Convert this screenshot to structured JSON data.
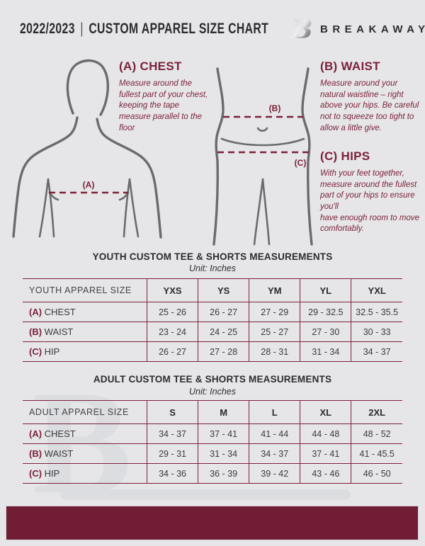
{
  "header": {
    "season": "2022/2023",
    "divider": "|",
    "title": "CUSTOM APPAREL SIZE CHART",
    "brand": "BREAKAWAY"
  },
  "watermark": {
    "letter": "B"
  },
  "figure_labels": {
    "chest": "(A)",
    "waist": "(B)",
    "hips": "(C)"
  },
  "instructions": [
    {
      "id": "A",
      "heading": "(A) CHEST",
      "body": "Measure around the fullest part of your chest, keeping the tape measure parallel to the floor"
    },
    {
      "id": "B",
      "heading": "(B) WAIST",
      "body": "Measure around your natural waistline – right above your hips. Be careful not to squeeze too tight to allow a little give."
    },
    {
      "id": "C",
      "heading": "(C) HIPS",
      "body": "With your feet together, measure around the fullest part of your hips to ensure you'll\nhave enough room to move comfortably."
    }
  ],
  "chart_data": [
    {
      "type": "table",
      "title": "YOUTH CUSTOM TEE & SHORTS MEASUREMENTS",
      "unit": "Unit: Inches",
      "header": [
        "YOUTH APPAREL SIZE",
        "YXS",
        "YS",
        "YM",
        "YL",
        "YXL"
      ],
      "rows": [
        {
          "prefix": "(A)",
          "label": "CHEST",
          "values": [
            "25 - 26",
            "26 - 27",
            "27 - 29",
            "29 - 32.5",
            "32.5 - 35.5"
          ]
        },
        {
          "prefix": "(B)",
          "label": "WAIST",
          "values": [
            "23 - 24",
            "24 - 25",
            "25 - 27",
            "27 - 30",
            "30 - 33"
          ]
        },
        {
          "prefix": "(C)",
          "label": "HIP",
          "values": [
            "26 - 27",
            "27 - 28",
            "28 - 31",
            "31 - 34",
            "34 - 37"
          ]
        }
      ]
    },
    {
      "type": "table",
      "title": "ADULT CUSTOM TEE & SHORTS MEASUREMENTS",
      "unit": "Unit: Inches",
      "header": [
        "ADULT APPAREL SIZE",
        "S",
        "M",
        "L",
        "XL",
        "2XL"
      ],
      "rows": [
        {
          "prefix": "(A)",
          "label": "CHEST",
          "values": [
            "34 - 37",
            "37 - 41",
            "41 - 44",
            "44 - 48",
            "48 - 52"
          ]
        },
        {
          "prefix": "(B)",
          "label": "WAIST",
          "values": [
            "29 - 31",
            "31 - 34",
            "34 - 37",
            "37 - 41",
            "41 - 45.5"
          ]
        },
        {
          "prefix": "(C)",
          "label": "HIP",
          "values": [
            "34 - 36",
            "36 - 39",
            "39 - 42",
            "43 - 46",
            "46 - 50"
          ]
        }
      ]
    }
  ],
  "colors": {
    "accent": "#7b2139",
    "band": "#701d35",
    "background": "#e6e6e8",
    "silhouette": "#6a6b6d",
    "ink": "#2c2c2e",
    "table_text": "#3a3a3c",
    "watermark": "#dcdde0"
  }
}
